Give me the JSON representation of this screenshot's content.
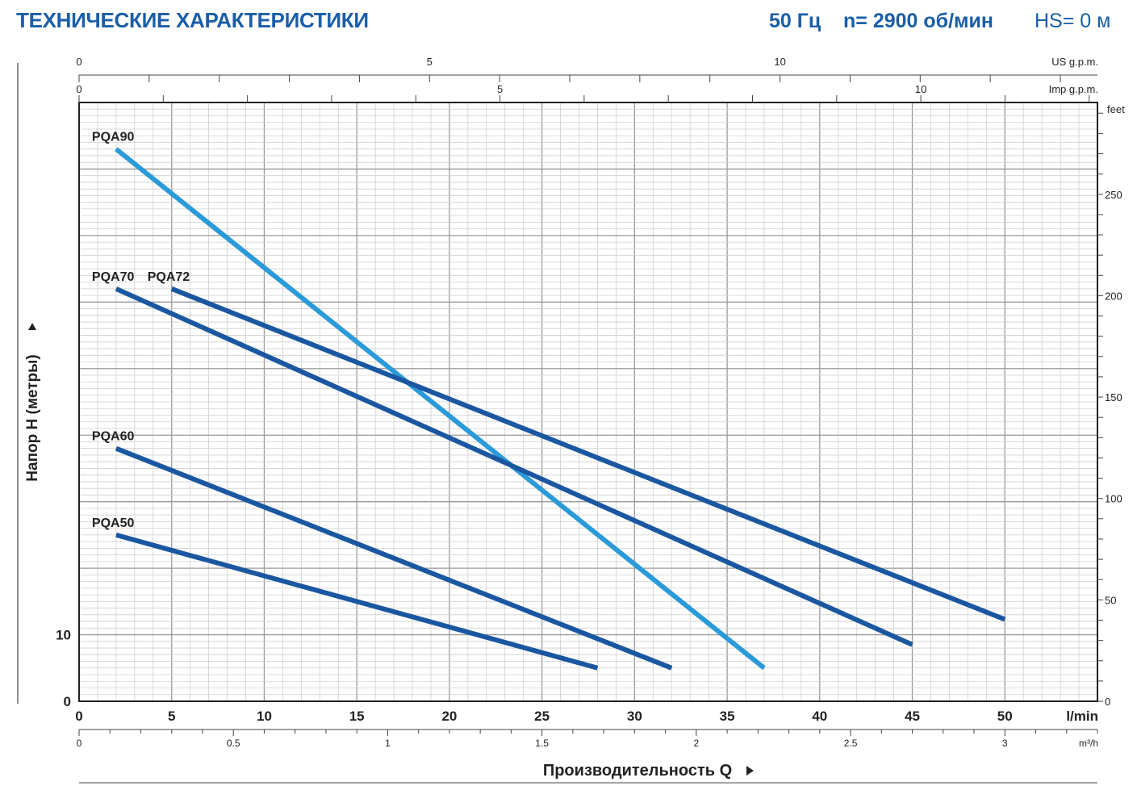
{
  "header": {
    "title": "ТЕХНИЧЕСКИЕ ХАРАКТЕРИСТИКИ",
    "frequency": "50 Гц",
    "speed": "n= 2900 об/мин",
    "suction": "HS= 0 м"
  },
  "chart_data": {
    "type": "line",
    "xlabel": "Производительность Q",
    "ylabel": "Напор H (метры)",
    "x_unit": "l/min",
    "xlim": [
      0,
      55
    ],
    "ylim": [
      0,
      90
    ],
    "x_ticks": [
      0,
      5,
      10,
      15,
      20,
      25,
      30,
      35,
      40,
      45,
      50
    ],
    "y_ticks": [
      0,
      10
    ],
    "grid": true,
    "secondary_axes": {
      "m3h": {
        "unit": "m³/h",
        "ticks": [
          0,
          0.5,
          1,
          1.5,
          2,
          2.5,
          3
        ],
        "tick_labels": [
          "0",
          "0.5",
          "1",
          "1.5",
          "2",
          "2.5",
          "3"
        ]
      },
      "us_gpm": {
        "unit": "US g.p.m.",
        "ticks": [
          0,
          5,
          10
        ],
        "tick_labels": [
          "0",
          "5",
          "10"
        ]
      },
      "imp_gpm": {
        "unit": "Imp g.p.m.",
        "ticks": [
          0,
          5,
          10
        ],
        "tick_labels": [
          "0",
          "5",
          "10"
        ]
      },
      "feet": {
        "unit": "feet",
        "ticks": [
          0,
          50,
          100,
          150,
          200,
          250
        ],
        "tick_labels": [
          "0",
          "50",
          "100",
          "150",
          "200",
          "250"
        ]
      }
    },
    "series": [
      {
        "name": "PQA90",
        "color": "#2b9ad8",
        "x": [
          2,
          37
        ],
        "y": [
          83,
          5
        ]
      },
      {
        "name": "PQA70",
        "color": "#1a57a0",
        "x": [
          2,
          45
        ],
        "y": [
          62,
          8.5
        ]
      },
      {
        "name": "PQA72",
        "color": "#1a57a0",
        "x": [
          5,
          50
        ],
        "y": [
          62,
          12.3
        ]
      },
      {
        "name": "PQA60",
        "color": "#1a57a0",
        "x": [
          2,
          32
        ],
        "y": [
          38,
          5
        ]
      },
      {
        "name": "PQA50",
        "color": "#1a57a0",
        "x": [
          2,
          28
        ],
        "y": [
          25,
          5
        ]
      }
    ]
  }
}
